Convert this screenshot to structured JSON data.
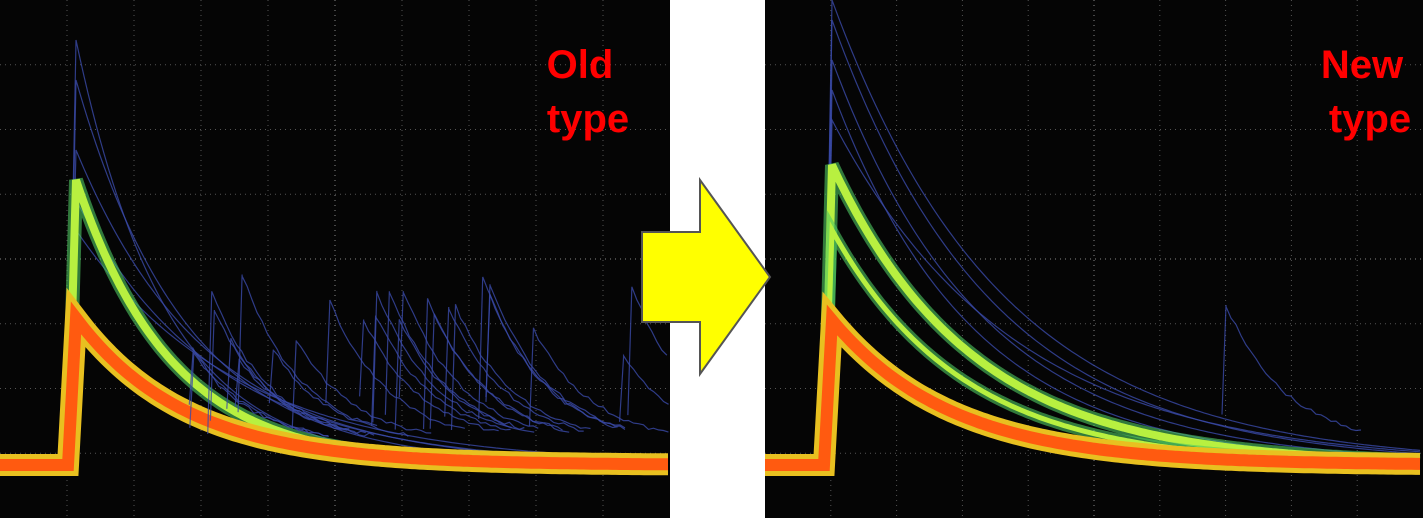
{
  "panels": [
    {
      "label_lines": [
        "Old",
        "type"
      ]
    },
    {
      "label_lines": [
        "New",
        "type"
      ]
    }
  ]
}
